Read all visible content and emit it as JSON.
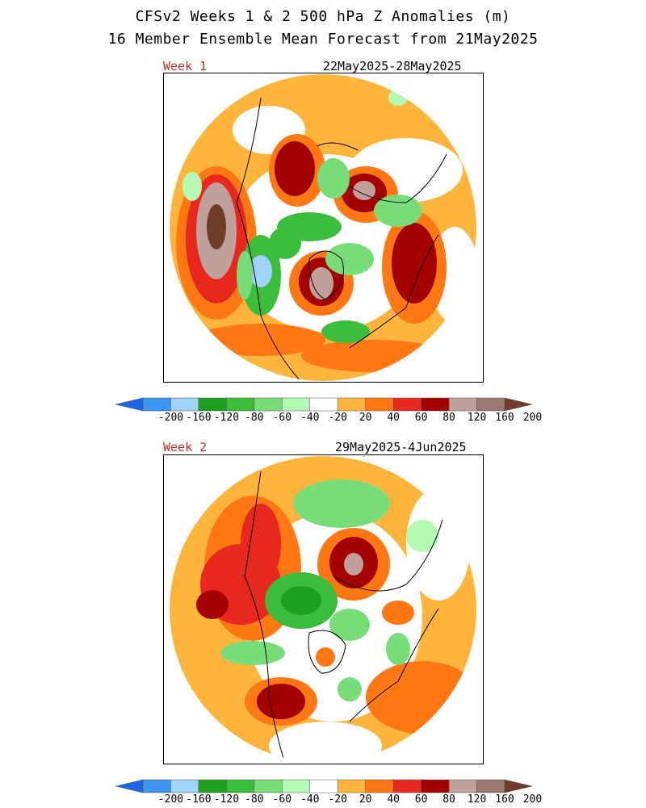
{
  "figure": {
    "title_line1": "CFSv2 Weeks 1 & 2 500 hPa Z Anomalies (m)",
    "title_line2": "16 Member Ensemble Mean Forecast from 21May2025"
  },
  "panels": [
    {
      "label": "Week 1",
      "dates": "22May2025-28May2025"
    },
    {
      "label": "Week 2",
      "dates": "29May2025-4Jun2025"
    }
  ],
  "colorbar": {
    "ticks": [
      "-200",
      "-160",
      "-120",
      "-80",
      "-60",
      "-40",
      "-20",
      "20",
      "40",
      "60",
      "80",
      "120",
      "160",
      "200"
    ],
    "colors": [
      "#1e64e6",
      "#3c96f0",
      "#a0d2fa",
      "#1ea01e",
      "#3cbe3c",
      "#78dc78",
      "#b4fab4",
      "#ffffff",
      "#ffb43c",
      "#ff7814",
      "#e6281e",
      "#a50000",
      "#c0a09a",
      "#9c7870",
      "#6e3c28"
    ],
    "units": "m"
  }
}
